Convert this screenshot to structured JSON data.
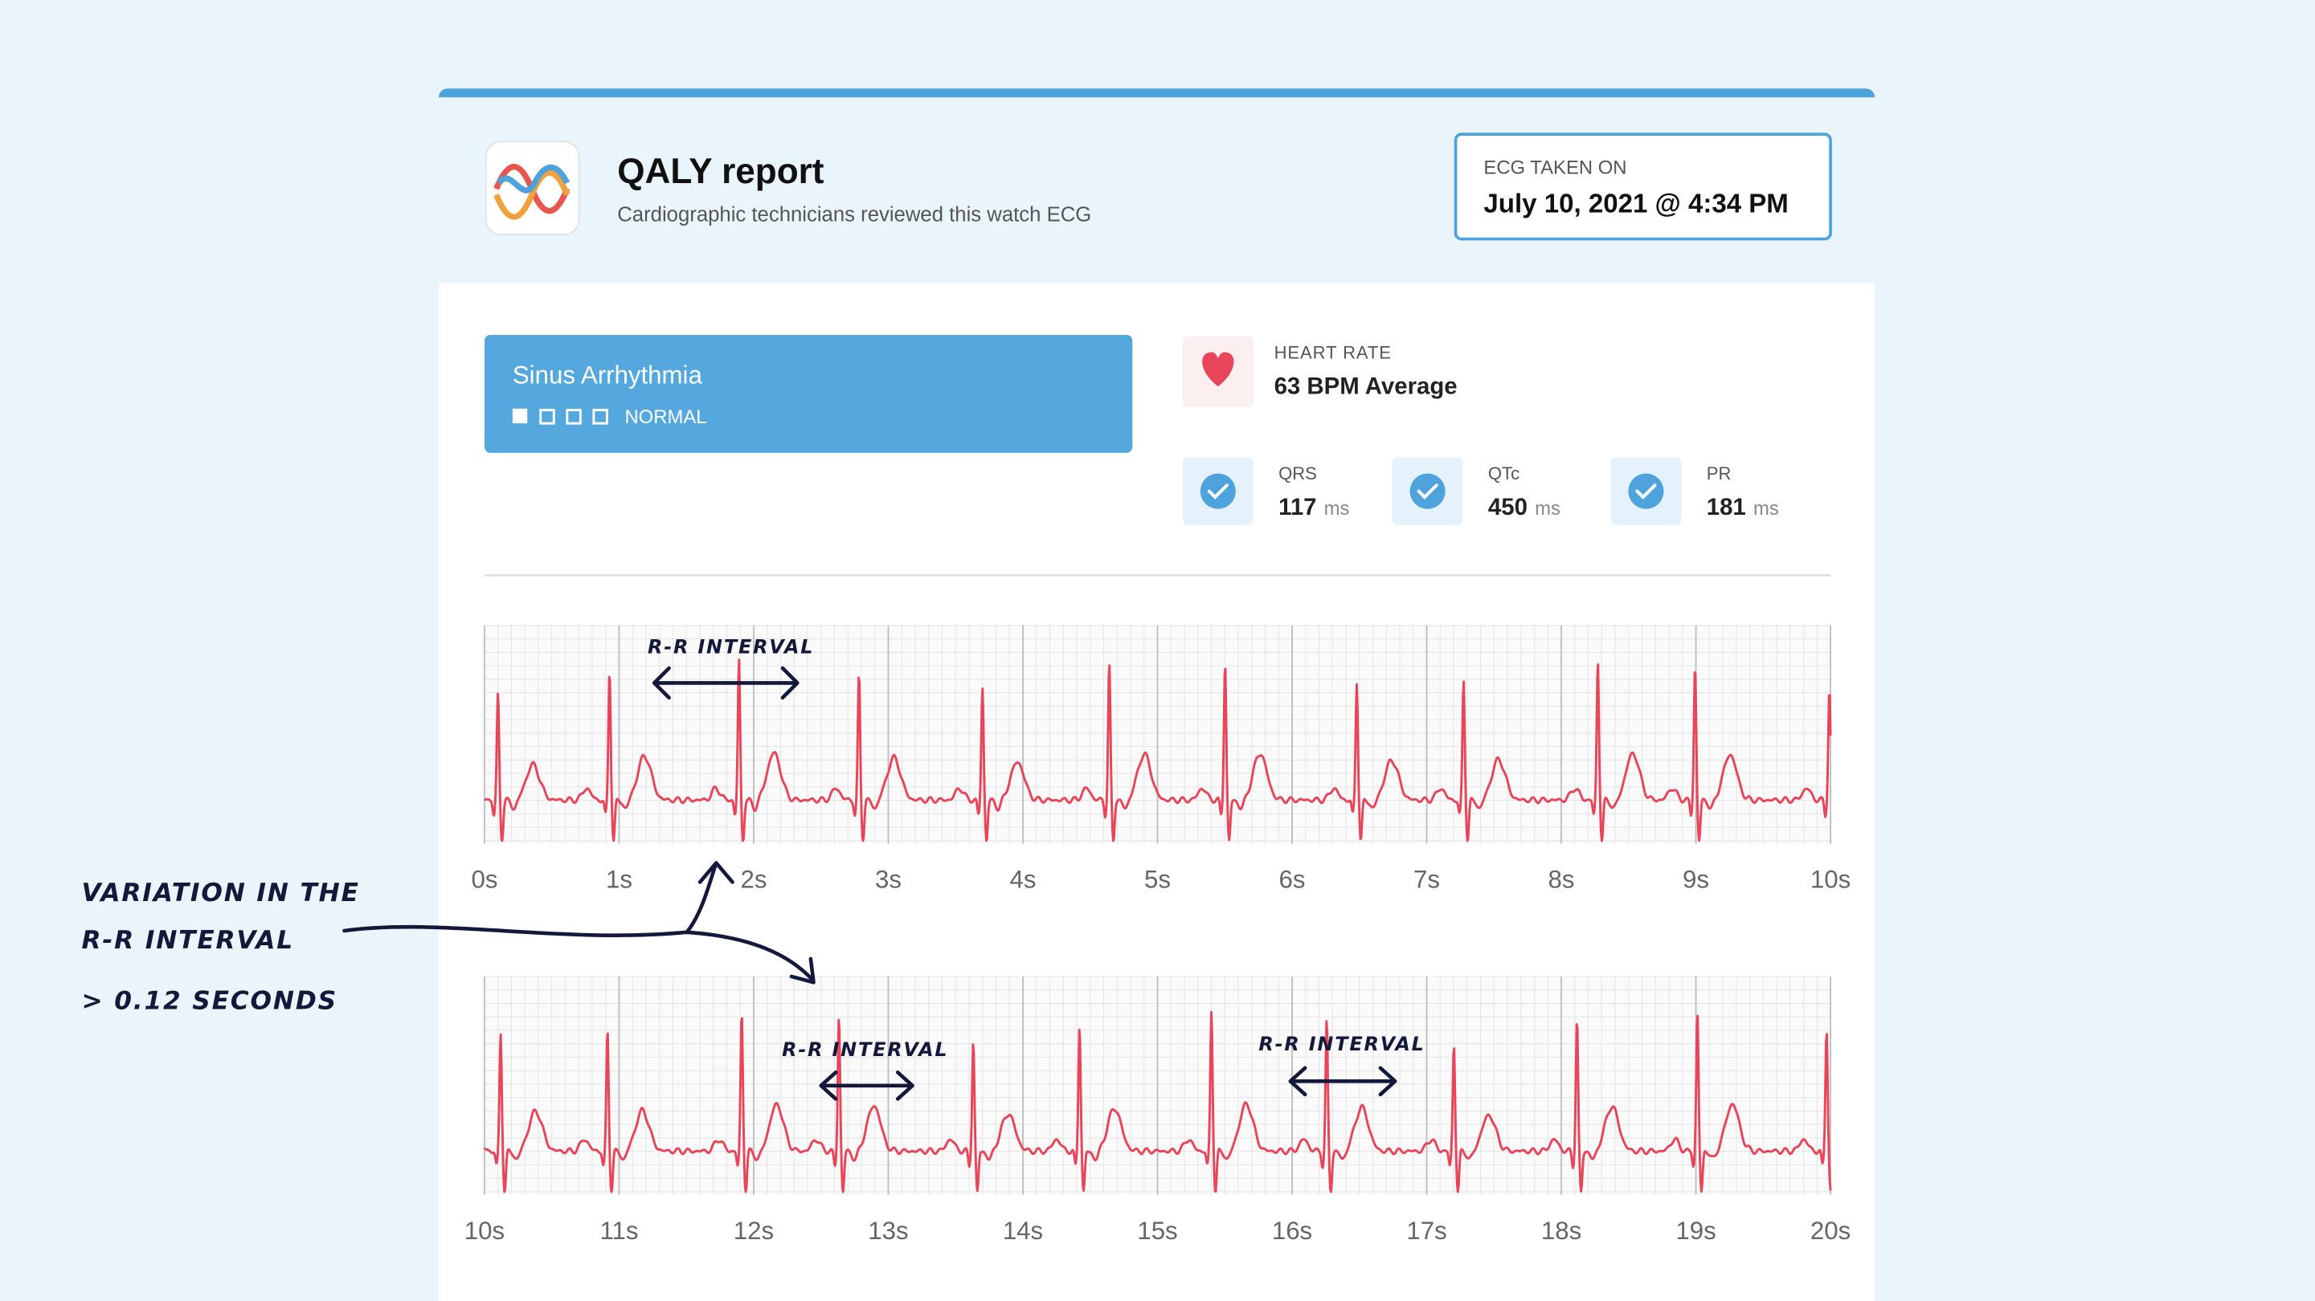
{
  "header": {
    "title": "QALY report",
    "subtitle": "Cardiographic technicians reviewed this watch ECG",
    "ecg_taken_label": "ECG TAKEN ON",
    "ecg_taken_date": "July 10, 2021 @ 4:34 PM"
  },
  "diagnosis": {
    "name": "Sinus Arrhythmia",
    "level": "NORMAL"
  },
  "heart_rate": {
    "label": "HEART RATE",
    "value": "63 BPM Average"
  },
  "metrics": [
    {
      "label": "QRS",
      "value": "117",
      "unit": "ms"
    },
    {
      "label": "QTc",
      "value": "450",
      "unit": "ms"
    },
    {
      "label": "PR",
      "value": "181",
      "unit": "ms"
    }
  ],
  "strips": [
    {
      "ticks": [
        "0s",
        "1s",
        "2s",
        "3s",
        "4s",
        "5s",
        "6s",
        "7s",
        "8s",
        "9s",
        "10s"
      ]
    },
    {
      "ticks": [
        "10s",
        "11s",
        "12s",
        "13s",
        "14s",
        "15s",
        "16s",
        "17s",
        "18s",
        "19s",
        "20s"
      ]
    }
  ],
  "annotations": {
    "rr_labels": [
      "R-R INTERVAL",
      "R-R INTERVAL",
      "R-R INTERVAL"
    ],
    "note": [
      "VARIATION IN THE",
      "R-R INTERVAL",
      "> 0.12 SECONDS"
    ]
  }
}
